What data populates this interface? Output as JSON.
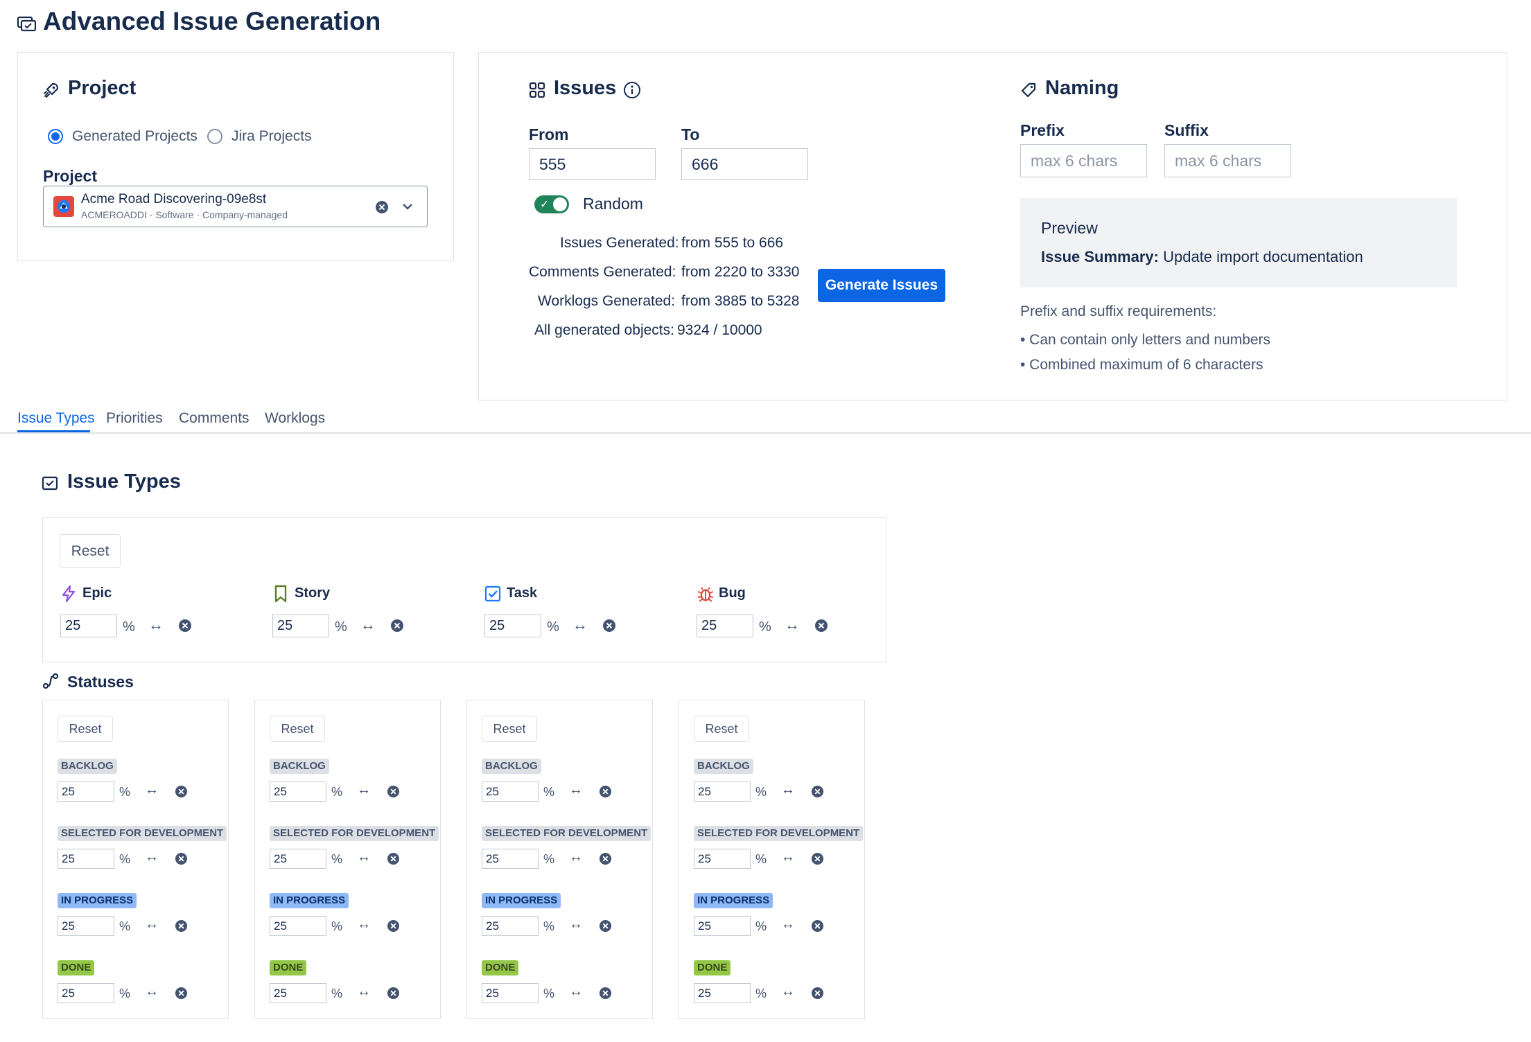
{
  "page": {
    "title": "Advanced Issue Generation"
  },
  "project_panel": {
    "heading": "Project",
    "radios": [
      {
        "label": "Generated Projects",
        "checked": true
      },
      {
        "label": "Jira Projects",
        "checked": false
      }
    ],
    "field_label": "Project",
    "selected": {
      "name": "Acme Road Discovering-09e8st",
      "meta": "ACMEROADDI · Software · Company-managed"
    }
  },
  "issues_panel": {
    "heading": "Issues",
    "from_label": "From",
    "from_value": "555",
    "to_label": "To",
    "to_value": "666",
    "random_label": "Random",
    "random_on": true,
    "stats": [
      {
        "label": "Issues Generated:",
        "value": "from 555 to 666"
      },
      {
        "label": "Comments Generated:",
        "value": "from 2220 to 3330"
      },
      {
        "label": "Worklogs Generated:",
        "value": "from 3885 to 5328"
      }
    ],
    "all_objects_label": "All generated objects:",
    "all_objects_value": "9324 / 10000",
    "generate_button": "Generate Issues"
  },
  "naming_panel": {
    "heading": "Naming",
    "prefix_label": "Prefix",
    "prefix_placeholder": "max 6 chars",
    "suffix_label": "Suffix",
    "suffix_placeholder": "max 6 chars",
    "preview_title": "Preview",
    "summary_label": "Issue Summary:",
    "summary_value": "Update import documentation",
    "requirements_title": "Prefix and suffix requirements:",
    "requirements": [
      "• Can contain only letters and numbers",
      "• Combined maximum of 6 characters"
    ]
  },
  "tabs": [
    {
      "label": "Issue Types",
      "active": true
    },
    {
      "label": "Priorities",
      "active": false
    },
    {
      "label": "Comments",
      "active": false
    },
    {
      "label": "Worklogs",
      "active": false
    }
  ],
  "issue_types": {
    "heading": "Issue Types",
    "reset_label": "Reset",
    "pct_symbol": "%",
    "arrows_symbol": "↔",
    "items": [
      {
        "name": "Epic",
        "value": "25",
        "icon": "lightning-icon",
        "color": "#904ee2"
      },
      {
        "name": "Story",
        "value": "25",
        "icon": "bookmark-icon",
        "color": "#5b7f24"
      },
      {
        "name": "Task",
        "value": "25",
        "icon": "checkbox-icon",
        "color": "#1d7afc"
      },
      {
        "name": "Bug",
        "value": "25",
        "icon": "bug-icon",
        "color": "#e2483d"
      }
    ]
  },
  "statuses": {
    "heading": "Statuses",
    "reset_label": "Reset",
    "columns": [
      {
        "rows": [
          {
            "name": "BACKLOG",
            "value": "25",
            "tone": "gray"
          },
          {
            "name": "SELECTED FOR DEVELOPMENT",
            "value": "25",
            "tone": "gray"
          },
          {
            "name": "IN PROGRESS",
            "value": "25",
            "tone": "blue"
          },
          {
            "name": "DONE",
            "value": "25",
            "tone": "green"
          }
        ]
      },
      {
        "rows": [
          {
            "name": "BACKLOG",
            "value": "25",
            "tone": "gray"
          },
          {
            "name": "SELECTED FOR DEVELOPMENT",
            "value": "25",
            "tone": "gray"
          },
          {
            "name": "IN PROGRESS",
            "value": "25",
            "tone": "blue"
          },
          {
            "name": "DONE",
            "value": "25",
            "tone": "green"
          }
        ]
      },
      {
        "rows": [
          {
            "name": "BACKLOG",
            "value": "25",
            "tone": "gray"
          },
          {
            "name": "SELECTED FOR DEVELOPMENT",
            "value": "25",
            "tone": "gray"
          },
          {
            "name": "IN PROGRESS",
            "value": "25",
            "tone": "blue"
          },
          {
            "name": "DONE",
            "value": "25",
            "tone": "green"
          }
        ]
      },
      {
        "rows": [
          {
            "name": "BACKLOG",
            "value": "25",
            "tone": "gray"
          },
          {
            "name": "SELECTED FOR DEVELOPMENT",
            "value": "25",
            "tone": "gray"
          },
          {
            "name": "IN PROGRESS",
            "value": "25",
            "tone": "blue"
          },
          {
            "name": "DONE",
            "value": "25",
            "tone": "green"
          }
        ]
      }
    ]
  }
}
